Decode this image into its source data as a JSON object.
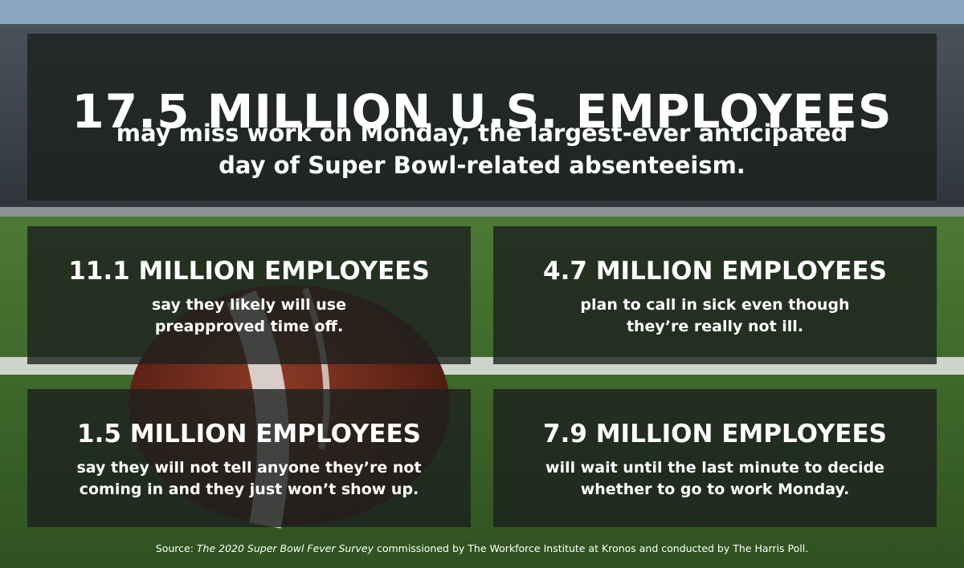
{
  "headline": {
    "title": "17.5 MILLION U.S. EMPLOYEES",
    "line1": "may miss work on Monday, the largest-ever anticipated",
    "line2": "day of Super Bowl-related absenteeism."
  },
  "stats": [
    {
      "title": "11.1 MILLION EMPLOYEES",
      "line1": "say they likely will use",
      "line2": "preapproved time off."
    },
    {
      "title": "4.7 MILLION EMPLOYEES",
      "line1": "plan to call in sick even though",
      "line2": "they’re really not ill."
    },
    {
      "title": "1.5 MILLION EMPLOYEES",
      "line1": "say they will not tell anyone they’re not",
      "line2": "coming in and they just won’t show up."
    },
    {
      "title": "7.9 MILLION EMPLOYEES",
      "line1": "will wait until the last minute to decide",
      "line2": "whether to go to work Monday."
    }
  ],
  "source": {
    "prefix": "Source: ",
    "survey": "The 2020 Super Bowl Fever Survey",
    "suffix": " commissioned by The Workforce Institute at Kronos and conducted by The Harris Poll."
  },
  "colors": {
    "panel": "#1c201e",
    "sky": "#7d98b4",
    "stadium": "#3d4650",
    "turf": "#3f6a2a",
    "football": "#6e2a1c",
    "stripe": "#e8e8e8"
  }
}
